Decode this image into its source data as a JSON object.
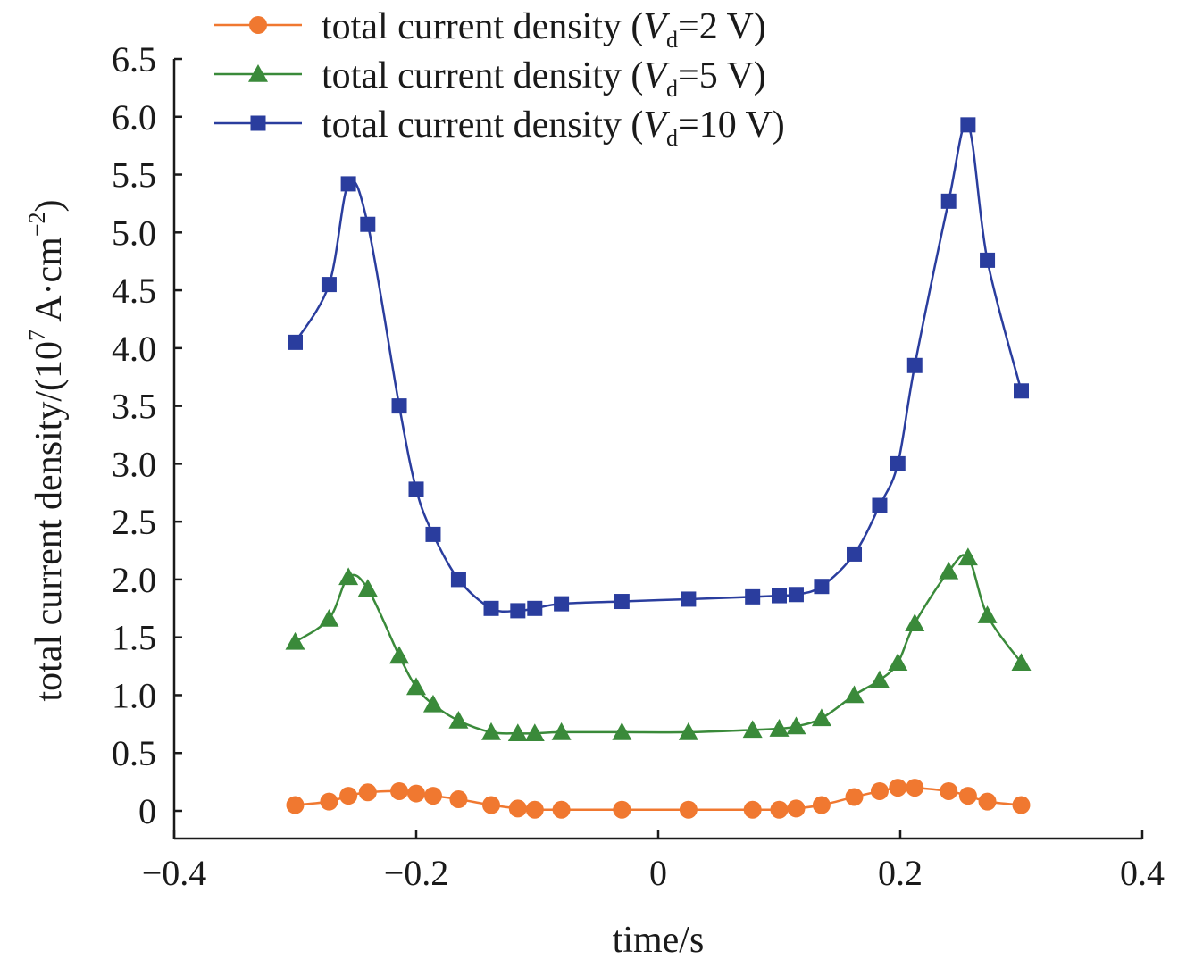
{
  "chart_data": {
    "type": "line",
    "xlabel": "time/s",
    "ylabel": "total current density/(10",
    "ylabel_exponent": "7",
    "ylabel_unit": " A·cm",
    "ylabel_unit_exponent": "−2",
    "ylabel_close": ")",
    "xlim": [
      -0.4,
      0.4
    ],
    "ylim": [
      0,
      6.5
    ],
    "xticks": [
      -0.4,
      -0.2,
      0,
      0.2,
      0.4
    ],
    "xtick_labels": [
      "−0.4",
      "−0.2",
      "0",
      "0.2",
      "0.4"
    ],
    "yticks": [
      0,
      0.5,
      1.0,
      1.5,
      2.0,
      2.5,
      3.0,
      3.5,
      4.0,
      4.5,
      5.0,
      5.5,
      6.0,
      6.5
    ],
    "ytick_labels": [
      "0",
      "0.5",
      "1.0",
      "1.5",
      "2.0",
      "2.5",
      "3.0",
      "3.5",
      "4.0",
      "4.5",
      "5.0",
      "5.5",
      "6.0",
      "6.5"
    ],
    "grid": false,
    "legend_position": "top",
    "series": [
      {
        "name": "total current density (Vd=2 V)",
        "legend_prefix": "total current density (",
        "legend_var": "V",
        "legend_sub": "d",
        "legend_suffix": "=2 V)",
        "color": "#f07830",
        "marker": "circle",
        "x": [
          -0.3,
          -0.272,
          -0.256,
          -0.24,
          -0.214,
          -0.2,
          -0.186,
          -0.165,
          -0.138,
          -0.116,
          -0.102,
          -0.08,
          -0.03,
          0.025,
          0.078,
          0.1,
          0.114,
          0.135,
          0.162,
          0.183,
          0.198,
          0.212,
          0.24,
          0.256,
          0.272,
          0.3
        ],
        "y": [
          0.05,
          0.08,
          0.13,
          0.16,
          0.17,
          0.15,
          0.13,
          0.1,
          0.05,
          0.02,
          0.01,
          0.01,
          0.01,
          0.01,
          0.01,
          0.01,
          0.02,
          0.05,
          0.12,
          0.17,
          0.2,
          0.2,
          0.17,
          0.13,
          0.08,
          0.05
        ]
      },
      {
        "name": "total current density (Vd=5 V)",
        "legend_prefix": "total current density (",
        "legend_var": "V",
        "legend_sub": "d",
        "legend_suffix": "=5 V)",
        "color": "#3a8a3a",
        "marker": "triangle",
        "x": [
          -0.3,
          -0.272,
          -0.256,
          -0.24,
          -0.214,
          -0.2,
          -0.186,
          -0.165,
          -0.138,
          -0.116,
          -0.102,
          -0.08,
          -0.03,
          0.025,
          0.078,
          0.1,
          0.114,
          0.135,
          0.162,
          0.183,
          0.198,
          0.212,
          0.24,
          0.256,
          0.272,
          0.3
        ],
        "y": [
          1.46,
          1.66,
          2.02,
          1.92,
          1.34,
          1.07,
          0.92,
          0.78,
          0.68,
          0.67,
          0.67,
          0.68,
          0.68,
          0.68,
          0.7,
          0.71,
          0.73,
          0.8,
          1.0,
          1.13,
          1.28,
          1.62,
          2.07,
          2.19,
          1.69,
          1.28
        ]
      },
      {
        "name": "total current density (Vd=10 V)",
        "legend_prefix": "total current density (",
        "legend_var": "V",
        "legend_sub": "d",
        "legend_suffix": "=10 V)",
        "color": "#2a3d9e",
        "marker": "square",
        "x": [
          -0.3,
          -0.272,
          -0.256,
          -0.24,
          -0.214,
          -0.2,
          -0.186,
          -0.165,
          -0.138,
          -0.116,
          -0.102,
          -0.08,
          -0.03,
          0.025,
          0.078,
          0.1,
          0.114,
          0.135,
          0.162,
          0.183,
          0.198,
          0.212,
          0.24,
          0.256,
          0.272,
          0.3
        ],
        "y": [
          4.05,
          4.55,
          5.42,
          5.07,
          3.5,
          2.78,
          2.39,
          2.0,
          1.75,
          1.73,
          1.75,
          1.79,
          1.81,
          1.83,
          1.85,
          1.86,
          1.87,
          1.94,
          2.22,
          2.64,
          3.0,
          3.85,
          5.27,
          5.93,
          4.76,
          3.63
        ]
      }
    ]
  }
}
